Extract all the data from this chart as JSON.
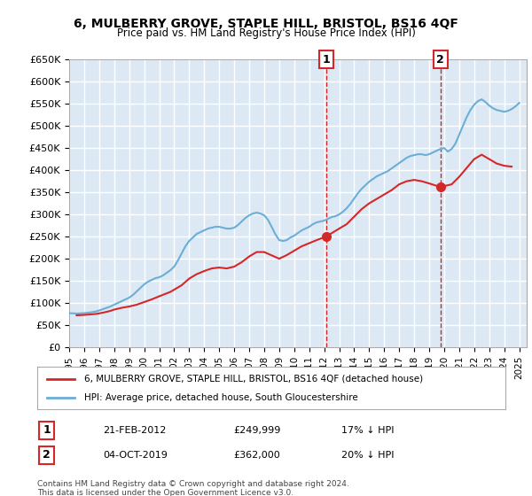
{
  "title": "6, MULBERRY GROVE, STAPLE HILL, BRISTOL, BS16 4QF",
  "subtitle": "Price paid vs. HM Land Registry's House Price Index (HPI)",
  "ylim": [
    0,
    650000
  ],
  "yticks": [
    0,
    50000,
    100000,
    150000,
    200000,
    250000,
    300000,
    350000,
    400000,
    450000,
    500000,
    550000,
    600000,
    650000
  ],
  "xlim_start": 1995.0,
  "xlim_end": 2025.5,
  "bg_color": "#dce9f5",
  "grid_color": "#ffffff",
  "hpi_color": "#6baed6",
  "price_color": "#d62728",
  "marker1_x": 2012.13,
  "marker1_y": 249999,
  "marker2_x": 2019.75,
  "marker2_y": 362000,
  "annotation1": "21-FEB-2012    £249,999    17% ↓ HPI",
  "annotation2": "04-OCT-2019    £362,000    20% ↓ HPI",
  "legend_line1": "6, MULBERRY GROVE, STAPLE HILL, BRISTOL, BS16 4QF (detached house)",
  "legend_line2": "HPI: Average price, detached house, South Gloucestershire",
  "footer": "Contains HM Land Registry data © Crown copyright and database right 2024.\nThis data is licensed under the Open Government Licence v3.0.",
  "hpi_data_x": [
    1995.0,
    1995.25,
    1995.5,
    1995.75,
    1996.0,
    1996.25,
    1996.5,
    1996.75,
    1997.0,
    1997.25,
    1997.5,
    1997.75,
    1998.0,
    1998.25,
    1998.5,
    1998.75,
    1999.0,
    1999.25,
    1999.5,
    1999.75,
    2000.0,
    2000.25,
    2000.5,
    2000.75,
    2001.0,
    2001.25,
    2001.5,
    2001.75,
    2002.0,
    2002.25,
    2002.5,
    2002.75,
    2003.0,
    2003.25,
    2003.5,
    2003.75,
    2004.0,
    2004.25,
    2004.5,
    2004.75,
    2005.0,
    2005.25,
    2005.5,
    2005.75,
    2006.0,
    2006.25,
    2006.5,
    2006.75,
    2007.0,
    2007.25,
    2007.5,
    2007.75,
    2008.0,
    2008.25,
    2008.5,
    2008.75,
    2009.0,
    2009.25,
    2009.5,
    2009.75,
    2010.0,
    2010.25,
    2010.5,
    2010.75,
    2011.0,
    2011.25,
    2011.5,
    2011.75,
    2012.0,
    2012.25,
    2012.5,
    2012.75,
    2013.0,
    2013.25,
    2013.5,
    2013.75,
    2014.0,
    2014.25,
    2014.5,
    2014.75,
    2015.0,
    2015.25,
    2015.5,
    2015.75,
    2016.0,
    2016.25,
    2016.5,
    2016.75,
    2017.0,
    2017.25,
    2017.5,
    2017.75,
    2018.0,
    2018.25,
    2018.5,
    2018.75,
    2019.0,
    2019.25,
    2019.5,
    2019.75,
    2020.0,
    2020.25,
    2020.5,
    2020.75,
    2021.0,
    2021.25,
    2021.5,
    2021.75,
    2022.0,
    2022.25,
    2022.5,
    2022.75,
    2023.0,
    2023.25,
    2023.5,
    2023.75,
    2024.0,
    2024.25,
    2024.5,
    2024.75,
    2025.0
  ],
  "hpi_data_y": [
    77000,
    76500,
    76000,
    76500,
    77000,
    78000,
    79000,
    80500,
    83000,
    86000,
    89000,
    92000,
    96000,
    100000,
    104000,
    108000,
    112000,
    118000,
    126000,
    134000,
    142000,
    148000,
    152000,
    156000,
    158000,
    162000,
    168000,
    174000,
    182000,
    196000,
    212000,
    228000,
    240000,
    248000,
    256000,
    260000,
    264000,
    268000,
    270000,
    272000,
    272000,
    270000,
    268000,
    268000,
    270000,
    276000,
    284000,
    292000,
    298000,
    302000,
    304000,
    302000,
    298000,
    288000,
    272000,
    255000,
    242000,
    240000,
    242000,
    248000,
    252000,
    258000,
    264000,
    268000,
    272000,
    278000,
    282000,
    284000,
    286000,
    290000,
    294000,
    296000,
    300000,
    306000,
    314000,
    324000,
    336000,
    348000,
    358000,
    366000,
    374000,
    380000,
    386000,
    390000,
    394000,
    398000,
    404000,
    410000,
    416000,
    422000,
    428000,
    432000,
    434000,
    436000,
    436000,
    434000,
    436000,
    440000,
    444000,
    448000,
    450000,
    442000,
    448000,
    460000,
    480000,
    500000,
    520000,
    536000,
    548000,
    556000,
    560000,
    554000,
    546000,
    540000,
    536000,
    534000,
    532000,
    534000,
    538000,
    544000,
    552000
  ],
  "price_data_x": [
    1995.5,
    1996.0,
    1996.75,
    1997.25,
    1997.75,
    1998.0,
    1998.5,
    1999.0,
    1999.5,
    2000.0,
    2000.5,
    2001.0,
    2001.75,
    2002.5,
    2003.0,
    2003.5,
    2004.0,
    2004.5,
    2005.0,
    2005.5,
    2006.0,
    2006.5,
    2007.0,
    2007.5,
    2008.0,
    2009.0,
    2009.5,
    2010.0,
    2010.5,
    2011.0,
    2011.5,
    2012.13,
    2013.0,
    2013.5,
    2014.0,
    2014.5,
    2015.0,
    2015.5,
    2016.0,
    2016.5,
    2017.0,
    2017.5,
    2018.0,
    2018.5,
    2019.0,
    2019.75,
    2020.5,
    2021.0,
    2021.5,
    2022.0,
    2022.5,
    2023.0,
    2023.5,
    2024.0,
    2024.5
  ],
  "price_data_y": [
    72000,
    73000,
    75000,
    78000,
    82000,
    85000,
    89000,
    92000,
    96000,
    102000,
    108000,
    115000,
    125000,
    140000,
    155000,
    165000,
    172000,
    178000,
    180000,
    178000,
    182000,
    192000,
    205000,
    215000,
    215000,
    200000,
    208000,
    218000,
    228000,
    235000,
    242000,
    249999,
    268000,
    278000,
    295000,
    312000,
    325000,
    335000,
    345000,
    355000,
    368000,
    375000,
    378000,
    375000,
    370000,
    362000,
    368000,
    385000,
    405000,
    425000,
    435000,
    425000,
    415000,
    410000,
    408000
  ]
}
